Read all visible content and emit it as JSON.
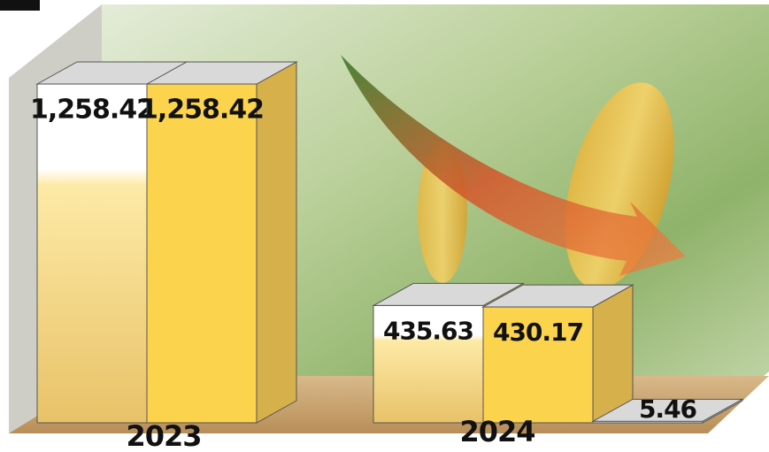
{
  "chart_data": {
    "type": "bar3d",
    "categories": [
      "2023",
      "2024"
    ],
    "series": [
      {
        "color": "#fde594",
        "values": [
          1258.42,
          435.63
        ],
        "value_labels": [
          "1,258.42",
          "435.63"
        ]
      },
      {
        "color": "#fcd34d",
        "values": [
          1258.42,
          430.17
        ],
        "value_labels": [
          "1,258.42",
          "430.17"
        ]
      },
      {
        "color": "#ececec",
        "values": [
          null,
          5.46
        ],
        "value_labels": [
          null,
          "5.46"
        ]
      }
    ]
  }
}
